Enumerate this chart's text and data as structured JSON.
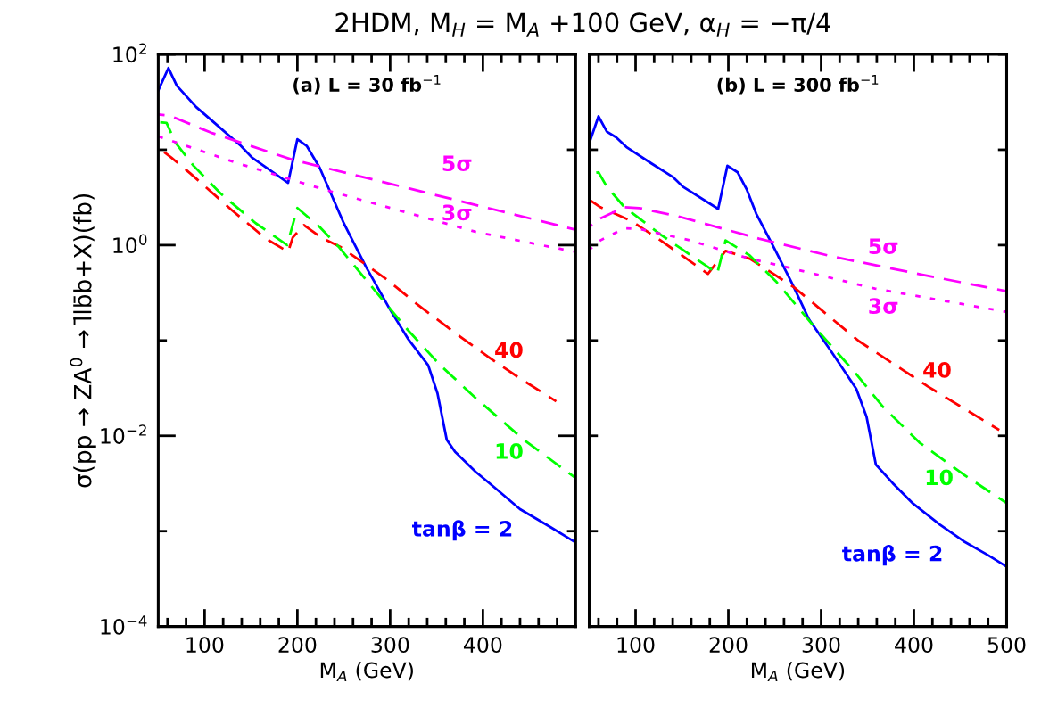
{
  "chart_data": [
    {
      "type": "line",
      "title": "2HDM, M$_{H}$ = M$_{A}$ +100 GeV, α$_{H}$ = −π/4",
      "subtitle": "(a) L = 30 fb$^{−1}$",
      "xlabel": "M$_{A}$ (GeV)",
      "ylabel": "σ(pp → ZA$^{0}$ → l̄lb̄b+X)(fb)",
      "log": "y",
      "xlim": [
        50,
        500
      ],
      "ylim": [
        0.0001,
        100
      ],
      "xticks": [
        {
          "value": 60,
          "label": null
        },
        {
          "value": 80,
          "label": null
        },
        100,
        {
          "value": 120,
          "label": null
        },
        {
          "value": 140,
          "label": null
        },
        {
          "value": 160,
          "label": null
        },
        {
          "value": 180,
          "label": null
        },
        200,
        {
          "value": 220,
          "label": null
        },
        {
          "value": 240,
          "label": null
        },
        {
          "value": 260,
          "label": null
        },
        {
          "value": 280,
          "label": null
        },
        300,
        {
          "value": 320,
          "label": null
        },
        {
          "value": 340,
          "label": null
        },
        {
          "value": 360,
          "label": null
        },
        {
          "value": 380,
          "label": null
        },
        400,
        {
          "value": 420,
          "label": null
        },
        {
          "value": 440,
          "label": null
        },
        {
          "value": 460,
          "label": null
        },
        {
          "value": 480,
          "label": null
        }
      ],
      "yticks": [
        {
          "value": 0.0001,
          "label": "10$^{−4}$"
        },
        {
          "value": 0.001,
          "label": null
        },
        {
          "value": 0.01,
          "label": "10$^{−2}$"
        },
        {
          "value": 0.1,
          "label": null
        },
        {
          "value": 1,
          "label": "10$^{0}$"
        },
        {
          "value": 10,
          "label": null
        },
        {
          "value": 100,
          "label": "10$^{2}$"
        }
      ],
      "grid": false,
      "legend": false,
      "series": [
        {
          "name": "tanβ = 2",
          "color": "#0000ff",
          "line_style": "solid",
          "x": [
            50,
            61,
            70,
            91,
            111,
            139,
            151,
            190,
            200,
            210,
            224,
            250,
            274,
            300,
            319,
            341,
            351,
            361,
            370,
            392,
            412,
            440,
            473,
            500
          ],
          "values": [
            41.7,
            72,
            47,
            28,
            19,
            11,
            8.3,
            4.5,
            12.9,
            11,
            6.5,
            1.7,
            0.59,
            0.21,
            0.105,
            0.055,
            0.028,
            0.0091,
            0.0068,
            0.0042,
            0.0029,
            0.0017,
            0.0011,
            0.00076
          ]
        },
        {
          "name": "40",
          "color": "#ff0000",
          "line_style": "dashed",
          "x": [
            50,
            64,
            85,
            130,
            166,
            190,
            195,
            207,
            226,
            247,
            296,
            329,
            367,
            405,
            440,
            479
          ],
          "values": [
            10.5,
            8.3,
            5.6,
            2.3,
            1.17,
            0.85,
            1.2,
            1.62,
            1.2,
            0.95,
            0.44,
            0.24,
            0.126,
            0.068,
            0.04,
            0.023
          ]
        },
        {
          "name": "10",
          "color": "#00ff00",
          "line_style": "dashed",
          "x": [
            50,
            59,
            69,
            88,
            117,
            155,
            189,
            200,
            224,
            245,
            284,
            319,
            354,
            392,
            444,
            500
          ],
          "values": [
            19.5,
            19.1,
            11.7,
            6.8,
            3.5,
            1.7,
            1.0,
            2.45,
            1.55,
            0.95,
            0.33,
            0.129,
            0.055,
            0.025,
            0.0091,
            0.0036
          ]
        },
        {
          "name": "5σ",
          "color": "#ff00ff",
          "line_style": "dashed",
          "x": [
            50,
            62,
            107,
            194,
            300,
            500
          ],
          "values": [
            23.4,
            22.9,
            15.1,
            7.9,
            4.4,
            1.45
          ]
        },
        {
          "name": "3σ",
          "color": "#ff00ff",
          "line_style": "dotted",
          "x": [
            50,
            72,
            136,
            226,
            392,
            463,
            500
          ],
          "values": [
            13.8,
            11.7,
            7.2,
            3.9,
            1.38,
            1.0,
            0.85
          ]
        }
      ]
    },
    {
      "type": "line",
      "subtitle": "(b) L = 300 fb$^{−1}$",
      "xlabel": "M$_{A}$ (GeV)",
      "log": "y",
      "xlim": [
        50,
        500
      ],
      "ylim": [
        0.0001,
        100
      ],
      "tick_labels": "x",
      "xticks": [
        {
          "value": 60,
          "label": null
        },
        {
          "value": 80,
          "label": null
        },
        100,
        {
          "value": 120,
          "label": null
        },
        {
          "value": 140,
          "label": null
        },
        {
          "value": 160,
          "label": null
        },
        {
          "value": 180,
          "label": null
        },
        200,
        {
          "value": 220,
          "label": null
        },
        {
          "value": 240,
          "label": null
        },
        {
          "value": 260,
          "label": null
        },
        {
          "value": 280,
          "label": null
        },
        300,
        {
          "value": 320,
          "label": null
        },
        {
          "value": 340,
          "label": null
        },
        {
          "value": 360,
          "label": null
        },
        {
          "value": 380,
          "label": null
        },
        400,
        {
          "value": 420,
          "label": null
        },
        {
          "value": 440,
          "label": null
        },
        {
          "value": 460,
          "label": null
        },
        {
          "value": 480,
          "label": null
        },
        500
      ],
      "yticks": [
        {
          "value": 0.0001,
          "label": null
        },
        {
          "value": 0.001,
          "label": null
        },
        {
          "value": 0.01,
          "label": null
        },
        {
          "value": 0.1,
          "label": null
        },
        {
          "value": 1,
          "label": null
        },
        {
          "value": 10,
          "label": null
        },
        {
          "value": 100,
          "label": null
        }
      ],
      "grid": false,
      "legend": false,
      "series": [
        {
          "name": "tanβ = 2",
          "color": "#0000ff",
          "line_style": "solid",
          "x": [
            50,
            60,
            69,
            79,
            90,
            117,
            140,
            151,
            189,
            199,
            210,
            220,
            230,
            249,
            268,
            287,
            310,
            338,
            349,
            359,
            377,
            399,
            428,
            454,
            480,
            499
          ],
          "values": [
            11.7,
            22.4,
            15.5,
            13.5,
            10.7,
            7.2,
            5.2,
            4.1,
            2.4,
            6.8,
            5.8,
            3.8,
            2.14,
            0.95,
            0.41,
            0.166,
            0.079,
            0.031,
            0.0158,
            0.005,
            0.0032,
            0.00195,
            0.00117,
            0.00078,
            0.00056,
            0.00043
          ]
        },
        {
          "name": "40",
          "color": "#ff0000",
          "line_style": "dashed",
          "x": [
            50,
            62,
            95,
            127,
            178,
            197,
            223,
            236,
            271,
            341,
            415,
            492
          ],
          "values": [
            3.0,
            2.5,
            1.8,
            1.12,
            0.5,
            0.87,
            0.72,
            0.6,
            0.36,
            0.098,
            0.033,
            0.0115
          ]
        },
        {
          "name": "10",
          "color": "#00ff00",
          "line_style": "dashed",
          "x": [
            50,
            60,
            69,
            88,
            127,
            178,
            188,
            197,
            223,
            252,
            293,
            335,
            367,
            406,
            454,
            499
          ],
          "values": [
            5.6,
            5.8,
            4.1,
            2.5,
            1.29,
            0.59,
            0.5,
            1.12,
            0.78,
            0.41,
            0.138,
            0.048,
            0.02,
            0.0085,
            0.0039,
            0.002
          ]
        },
        {
          "name": "5σ",
          "color": "#ff00ff",
          "line_style": "dashed",
          "x": [
            50,
            62,
            88,
            104,
            146,
            233,
            312,
            409,
            499
          ],
          "values": [
            1.55,
            1.9,
            2.5,
            2.45,
            2.0,
            1.17,
            0.76,
            0.49,
            0.33
          ]
        },
        {
          "name": "3σ",
          "color": "#ff00ff",
          "line_style": "dotted",
          "x": [
            50,
            62,
            88,
            104,
            159,
            223,
            262,
            358,
            499
          ],
          "values": [
            0.89,
            1.12,
            1.5,
            1.48,
            1.12,
            0.72,
            0.59,
            0.35,
            0.2
          ]
        }
      ]
    }
  ]
}
